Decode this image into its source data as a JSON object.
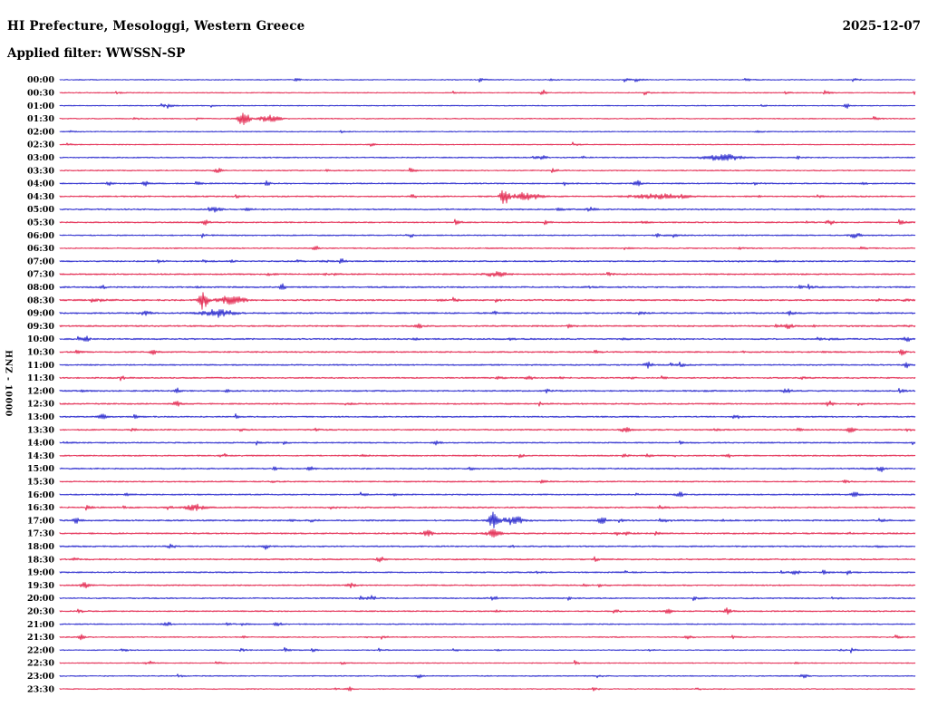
{
  "header": {
    "title": "HI Prefecture, Mesologgi, Western Greece",
    "date": "2025-12-07",
    "filter": "Applied filter: WWSSN-SP"
  },
  "y_axis_label": "HNZ - 10000",
  "noise_seed": 1207,
  "chart_data": {
    "type": "line",
    "subtype": "helicorder-dayplot",
    "row_duration_minutes": 30,
    "x_range_minutes": [
      0,
      30
    ],
    "legend_position": "none",
    "grid": false,
    "trace_colors": {
      "even_rows": "#1212c8",
      "odd_rows": "#e0103c"
    },
    "rows": [
      "00:00",
      "00:30",
      "01:00",
      "01:30",
      "02:00",
      "02:30",
      "03:00",
      "03:30",
      "04:00",
      "04:30",
      "05:00",
      "05:30",
      "06:00",
      "06:30",
      "07:00",
      "07:30",
      "08:00",
      "08:30",
      "09:00",
      "09:30",
      "10:00",
      "10:30",
      "11:00",
      "11:30",
      "12:00",
      "12:30",
      "13:00",
      "13:30",
      "14:00",
      "14:30",
      "15:00",
      "15:30",
      "16:00",
      "16:30",
      "17:00",
      "17:30",
      "18:00",
      "18:30",
      "19:00",
      "19:30",
      "20:00",
      "20:30",
      "21:00",
      "21:30",
      "22:00",
      "22:30",
      "23:00",
      "23:30"
    ],
    "noise_level": [
      0.7,
      0.7,
      0.7,
      0.75,
      0.7,
      0.7,
      0.85,
      0.8,
      0.95,
      1.0,
      1.0,
      0.95,
      0.9,
      0.85,
      1.0,
      1.05,
      1.1,
      1.1,
      1.15,
      1.1,
      1.05,
      1.05,
      1.0,
      1.0,
      1.05,
      1.05,
      1.0,
      1.0,
      0.95,
      0.95,
      1.0,
      0.95,
      1.0,
      1.05,
      1.1,
      1.1,
      1.05,
      1.0,
      1.0,
      0.95,
      0.9,
      0.9,
      0.85,
      0.8,
      0.7,
      0.7,
      0.75,
      0.7
    ],
    "events": [
      {
        "row": "00:30",
        "x": 0.565,
        "amp": 3,
        "sigma": 2
      },
      {
        "row": "01:00",
        "x": 0.92,
        "amp": 2.5,
        "sigma": 2
      },
      {
        "row": "01:30",
        "x": 0.215,
        "amp": 9,
        "sigma": 4
      },
      {
        "row": "01:30",
        "x": 0.245,
        "amp": 3.5,
        "sigma": 8
      },
      {
        "row": "02:30",
        "x": 0.365,
        "amp": 2.2,
        "sigma": 2
      },
      {
        "row": "03:00",
        "x": 0.565,
        "amp": 2.5,
        "sigma": 3
      },
      {
        "row": "03:00",
        "x": 0.775,
        "amp": 3.5,
        "sigma": 14
      },
      {
        "row": "03:30",
        "x": 0.185,
        "amp": 2.2,
        "sigma": 3
      },
      {
        "row": "04:00",
        "x": 0.058,
        "amp": 3.2,
        "sigma": 2
      },
      {
        "row": "04:00",
        "x": 0.1,
        "amp": 2.8,
        "sigma": 2
      },
      {
        "row": "04:00",
        "x": 0.243,
        "amp": 3,
        "sigma": 2
      },
      {
        "row": "04:00",
        "x": 0.675,
        "amp": 2.8,
        "sigma": 3
      },
      {
        "row": "04:30",
        "x": 0.52,
        "amp": 10,
        "sigma": 3
      },
      {
        "row": "04:30",
        "x": 0.545,
        "amp": 4,
        "sigma": 10
      },
      {
        "row": "04:30",
        "x": 0.7,
        "amp": 2.5,
        "sigma": 20
      },
      {
        "row": "05:00",
        "x": 0.18,
        "amp": 3,
        "sigma": 5
      },
      {
        "row": "05:00",
        "x": 0.62,
        "amp": 2,
        "sigma": 4
      },
      {
        "row": "05:30",
        "x": 0.17,
        "amp": 2.5,
        "sigma": 4
      },
      {
        "row": "05:30",
        "x": 0.9,
        "amp": 2.5,
        "sigma": 3
      },
      {
        "row": "06:00",
        "x": 0.41,
        "amp": 2,
        "sigma": 3
      },
      {
        "row": "06:00",
        "x": 0.93,
        "amp": 2.8,
        "sigma": 4
      },
      {
        "row": "06:30",
        "x": 0.3,
        "amp": 2,
        "sigma": 3
      },
      {
        "row": "07:00",
        "x": 0.33,
        "amp": 2.5,
        "sigma": 3
      },
      {
        "row": "07:30",
        "x": 0.51,
        "amp": 2.5,
        "sigma": 8
      },
      {
        "row": "08:00",
        "x": 0.26,
        "amp": 4.5,
        "sigma": 2
      },
      {
        "row": "08:00",
        "x": 0.05,
        "amp": 2.2,
        "sigma": 2
      },
      {
        "row": "08:30",
        "x": 0.168,
        "amp": 11,
        "sigma": 3
      },
      {
        "row": "08:30",
        "x": 0.2,
        "amp": 4.5,
        "sigma": 10
      },
      {
        "row": "09:00",
        "x": 0.185,
        "amp": 4,
        "sigma": 12
      },
      {
        "row": "09:00",
        "x": 0.1,
        "amp": 2.5,
        "sigma": 4
      },
      {
        "row": "09:30",
        "x": 0.85,
        "amp": 3,
        "sigma": 4
      },
      {
        "row": "09:30",
        "x": 0.42,
        "amp": 2.2,
        "sigma": 3
      },
      {
        "row": "10:00",
        "x": 0.03,
        "amp": 2.5,
        "sigma": 3
      },
      {
        "row": "10:00",
        "x": 0.99,
        "amp": 2.8,
        "sigma": 3
      },
      {
        "row": "10:30",
        "x": 0.985,
        "amp": 3.5,
        "sigma": 2
      },
      {
        "row": "10:30",
        "x": 0.11,
        "amp": 2.5,
        "sigma": 3
      },
      {
        "row": "11:00",
        "x": 0.688,
        "amp": 4,
        "sigma": 3
      },
      {
        "row": "11:00",
        "x": 0.99,
        "amp": 2.8,
        "sigma": 2
      },
      {
        "row": "11:30",
        "x": 0.55,
        "amp": 2.3,
        "sigma": 3
      },
      {
        "row": "12:00",
        "x": 0.137,
        "amp": 3,
        "sigma": 2
      },
      {
        "row": "12:00",
        "x": 0.85,
        "amp": 2.4,
        "sigma": 3
      },
      {
        "row": "12:30",
        "x": 0.9,
        "amp": 3,
        "sigma": 3
      },
      {
        "row": "12:30",
        "x": 0.137,
        "amp": 2.5,
        "sigma": 3
      },
      {
        "row": "13:00",
        "x": 0.05,
        "amp": 2.5,
        "sigma": 3
      },
      {
        "row": "13:00",
        "x": 0.79,
        "amp": 2.4,
        "sigma": 3
      },
      {
        "row": "13:30",
        "x": 0.925,
        "amp": 4.5,
        "sigma": 2.5
      },
      {
        "row": "13:30",
        "x": 0.66,
        "amp": 2.4,
        "sigma": 3
      },
      {
        "row": "14:00",
        "x": 0.44,
        "amp": 2,
        "sigma": 3
      },
      {
        "row": "14:30",
        "x": 0.78,
        "amp": 2.4,
        "sigma": 3
      },
      {
        "row": "15:00",
        "x": 0.295,
        "amp": 2.8,
        "sigma": 3
      },
      {
        "row": "15:00",
        "x": 0.96,
        "amp": 2.8,
        "sigma": 3
      },
      {
        "row": "16:00",
        "x": 0.725,
        "amp": 2.4,
        "sigma": 3
      },
      {
        "row": "16:00",
        "x": 0.93,
        "amp": 2.4,
        "sigma": 3
      },
      {
        "row": "16:30",
        "x": 0.158,
        "amp": 3.5,
        "sigma": 7
      },
      {
        "row": "17:00",
        "x": 0.507,
        "amp": 12,
        "sigma": 3
      },
      {
        "row": "17:00",
        "x": 0.53,
        "amp": 4.5,
        "sigma": 9
      },
      {
        "row": "17:00",
        "x": 0.634,
        "amp": 4,
        "sigma": 3
      },
      {
        "row": "17:00",
        "x": 0.02,
        "amp": 2.8,
        "sigma": 3
      },
      {
        "row": "17:30",
        "x": 0.507,
        "amp": 4,
        "sigma": 5
      },
      {
        "row": "17:30",
        "x": 0.43,
        "amp": 2.8,
        "sigma": 4
      },
      {
        "row": "18:00",
        "x": 0.13,
        "amp": 2.8,
        "sigma": 3
      },
      {
        "row": "18:00",
        "x": 0.24,
        "amp": 2.8,
        "sigma": 3
      },
      {
        "row": "18:30",
        "x": 0.375,
        "amp": 2.4,
        "sigma": 3
      },
      {
        "row": "19:00",
        "x": 0.86,
        "amp": 2.4,
        "sigma": 3
      },
      {
        "row": "19:30",
        "x": 0.03,
        "amp": 2.8,
        "sigma": 4
      },
      {
        "row": "19:30",
        "x": 0.34,
        "amp": 2.4,
        "sigma": 3
      },
      {
        "row": "20:00",
        "x": 0.365,
        "amp": 2.4,
        "sigma": 3
      },
      {
        "row": "20:00",
        "x": 0.507,
        "amp": 2.4,
        "sigma": 3
      },
      {
        "row": "20:30",
        "x": 0.71,
        "amp": 2.8,
        "sigma": 3
      },
      {
        "row": "20:30",
        "x": 0.78,
        "amp": 2.4,
        "sigma": 3
      },
      {
        "row": "21:00",
        "x": 0.125,
        "amp": 2.8,
        "sigma": 3
      },
      {
        "row": "21:00",
        "x": 0.255,
        "amp": 2.4,
        "sigma": 3
      },
      {
        "row": "21:30",
        "x": 0.735,
        "amp": 2.4,
        "sigma": 3
      },
      {
        "row": "21:30",
        "x": 0.025,
        "amp": 2.4,
        "sigma": 3
      },
      {
        "row": "22:30",
        "x": 0.105,
        "amp": 2,
        "sigma": 3
      },
      {
        "row": "23:00",
        "x": 0.42,
        "amp": 2.4,
        "sigma": 3
      },
      {
        "row": "23:00",
        "x": 0.87,
        "amp": 2.2,
        "sigma": 3
      },
      {
        "row": "23:30",
        "x": 0.34,
        "amp": 2,
        "sigma": 3
      }
    ]
  }
}
